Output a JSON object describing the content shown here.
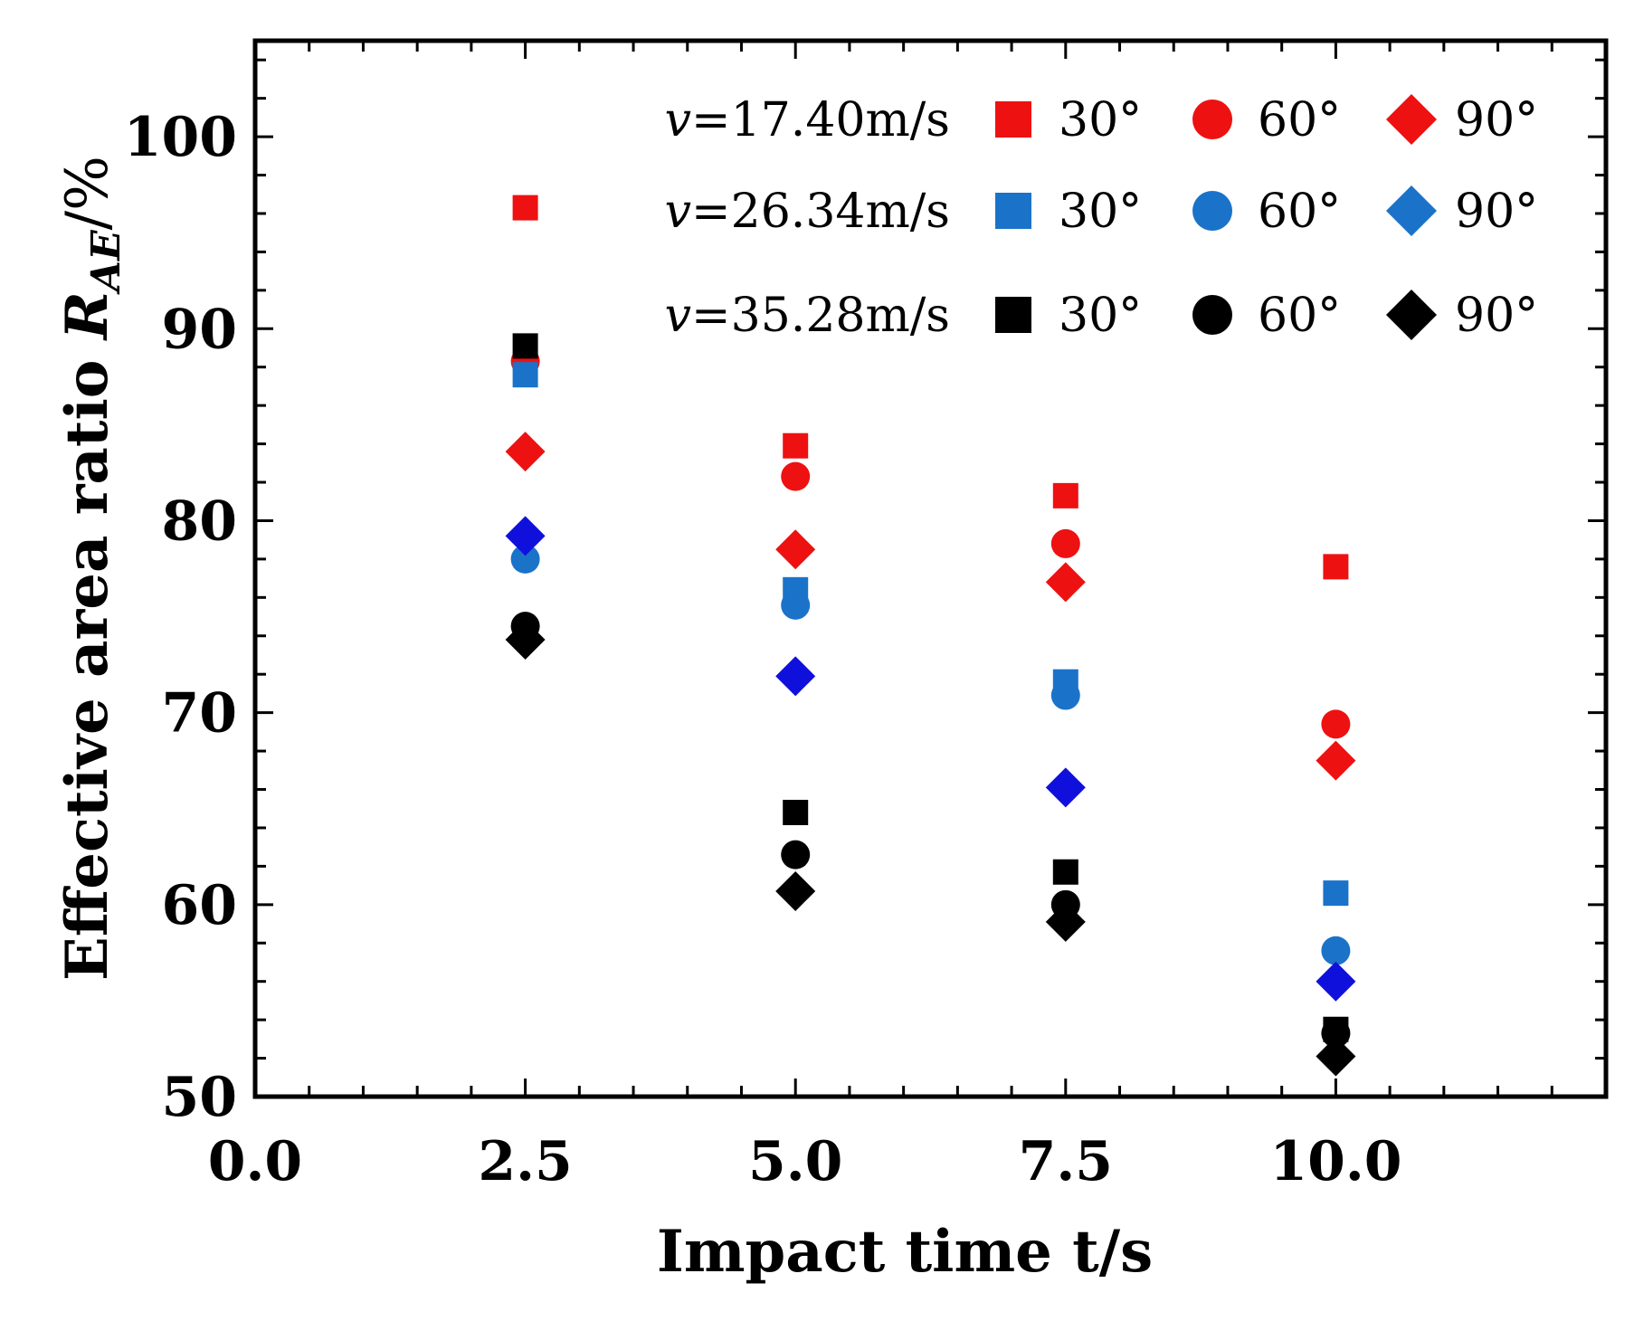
{
  "chart_data": {
    "type": "scatter",
    "title": "",
    "xlabel": "Impact time t/s",
    "ylabel_main": "Effective area ratio ",
    "ylabel_var": "R",
    "ylabel_sub": "AE",
    "ylabel_unit": "/%",
    "xlim": [
      0,
      12.5
    ],
    "ylim": [
      50,
      105
    ],
    "x_ticks": [
      0.0,
      2.5,
      5.0,
      7.5,
      10.0
    ],
    "x_tick_labels": [
      "0.0",
      "2.5",
      "5.0",
      "7.5",
      "10.0"
    ],
    "y_ticks": [
      50,
      60,
      70,
      80,
      90,
      100
    ],
    "y_tick_labels": [
      "50",
      "60",
      "70",
      "80",
      "90",
      "100"
    ],
    "legend_position": "top-right",
    "legend_rows": [
      {
        "v_symbol": "v",
        "speed": "=17.40m/s",
        "color": "#ee1111",
        "angle_labels": [
          "30°",
          "60°",
          "90°"
        ]
      },
      {
        "v_symbol": "v",
        "speed": "=26.34m/s",
        "color": "#1a73c9",
        "angle_labels": [
          "30°",
          "60°",
          "90°"
        ]
      },
      {
        "v_symbol": "v",
        "speed": "=35.28m/s",
        "color": "#000000",
        "angle_labels": [
          "30°",
          "60°",
          "90°"
        ]
      }
    ],
    "series": [
      {
        "name": "v=17.40m/s 30°",
        "marker": "square",
        "color": "#ee1111",
        "x": [
          2.5,
          5.0,
          7.5,
          10.0
        ],
        "y": [
          96.3,
          83.9,
          81.3,
          77.6
        ]
      },
      {
        "name": "v=17.40m/s 60°",
        "marker": "circle",
        "color": "#ee1111",
        "x": [
          2.5,
          5.0,
          7.5,
          10.0
        ],
        "y": [
          88.3,
          82.3,
          78.8,
          69.4
        ]
      },
      {
        "name": "v=17.40m/s 90°",
        "marker": "diamond",
        "color": "#ee1111",
        "x": [
          2.5,
          5.0,
          7.5,
          10.0
        ],
        "y": [
          83.6,
          78.5,
          76.8,
          67.5
        ]
      },
      {
        "name": "v=26.34m/s 30°",
        "marker": "square",
        "color": "#1a73c9",
        "x": [
          2.5,
          5.0,
          7.5,
          10.0
        ],
        "y": [
          87.6,
          76.4,
          71.6,
          60.6
        ]
      },
      {
        "name": "v=26.34m/s 60°",
        "marker": "circle",
        "color": "#1a73c9",
        "x": [
          2.5,
          5.0,
          7.5,
          10.0
        ],
        "y": [
          78.0,
          75.6,
          70.9,
          57.6
        ]
      },
      {
        "name": "v=26.34m/s 90°",
        "marker": "diamond",
        "color": "#1010dd",
        "x": [
          2.5,
          5.0,
          7.5,
          10.0
        ],
        "y": [
          79.2,
          71.9,
          66.1,
          56.0
        ]
      },
      {
        "name": "v=35.28m/s 30°",
        "marker": "square",
        "color": "#000000",
        "x": [
          2.5,
          5.0,
          7.5,
          10.0
        ],
        "y": [
          89.1,
          64.8,
          61.7,
          53.5
        ]
      },
      {
        "name": "v=35.28m/s 60°",
        "marker": "circle",
        "color": "#000000",
        "x": [
          2.5,
          5.0,
          7.5,
          10.0
        ],
        "y": [
          74.5,
          62.6,
          60.0,
          53.3
        ]
      },
      {
        "name": "v=35.28m/s 90°",
        "marker": "diamond",
        "color": "#000000",
        "x": [
          2.5,
          5.0,
          7.5,
          10.0
        ],
        "y": [
          73.8,
          60.7,
          59.1,
          52.1
        ]
      }
    ]
  }
}
